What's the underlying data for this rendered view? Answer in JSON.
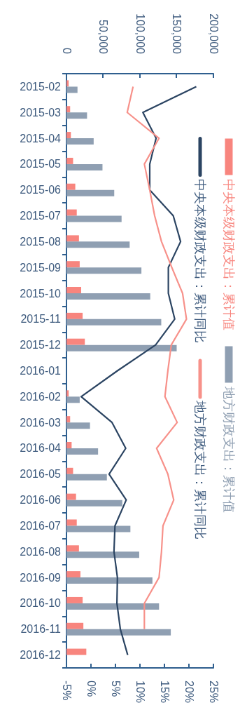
{
  "chart_data": {
    "type": "bar",
    "orientation": "horizontal",
    "categories": [
      "2015-02",
      "2015-03",
      "2015-04",
      "2015-05",
      "2015-06",
      "2015-07",
      "2015-08",
      "2015-09",
      "2015-10",
      "2015-11",
      "2015-12",
      "2016-01",
      "2016-02",
      "2016-03",
      "2016-04",
      "2016-05",
      "2016-06",
      "2016-07",
      "2016-08",
      "2016-09",
      "2016-10",
      "2016-11",
      "2016-12"
    ],
    "series": [
      {
        "name": "中央本级财政支出：累计值",
        "axis": "x2",
        "color": "#f8857e",
        "values": [
          3000,
          5000,
          6000,
          9000,
          12000,
          14000,
          17000,
          18000,
          20000,
          22000,
          25000,
          null,
          3000,
          5000,
          7000,
          9000,
          13000,
          14000,
          17000,
          19000,
          22000,
          23000,
          27000
        ]
      },
      {
        "name": "地方财政支出：累计值",
        "axis": "x2",
        "color": "#8f9fb2",
        "values": [
          15000,
          28000,
          37000,
          49000,
          65000,
          75000,
          86000,
          102000,
          114000,
          129000,
          150000,
          null,
          18000,
          32000,
          43000,
          55000,
          76000,
          87000,
          99000,
          117000,
          126000,
          142000,
          null
        ]
      },
      {
        "name": "中央本级财政支出：累计同比",
        "type": "line",
        "color": "#2b4462",
        "values": [
          21.5,
          10.6,
          13.3,
          12.0,
          12.0,
          16.8,
          18.3,
          15.8,
          15.8,
          17.1,
          13.2,
          5.4,
          -2.0,
          4.3,
          7.1,
          3.7,
          7.2,
          4.9,
          4.7,
          5.4,
          5.3,
          6.0,
          7.5
        ]
      },
      {
        "name": "地方财政支出：累计同比",
        "type": "line",
        "color": "#f7918a",
        "values": [
          8.6,
          7.4,
          13.9,
          10.9,
          12.0,
          13.0,
          14.4,
          16.5,
          18.7,
          19.5,
          16.4,
          15.7,
          15.1,
          17.6,
          13.4,
          15.7,
          16.9,
          14.7,
          14.4,
          13.9,
          10.9,
          10.9,
          null
        ]
      }
    ],
    "xlim": [
      -5,
      25
    ],
    "xticks": [
      {
        "value": -5,
        "label": "-5%"
      },
      {
        "value": 0,
        "label": "0%"
      },
      {
        "value": 5,
        "label": "5%"
      },
      {
        "value": 10,
        "label": "10%"
      },
      {
        "value": 15,
        "label": "15%"
      },
      {
        "value": 20,
        "label": "20%"
      },
      {
        "value": 25,
        "label": "25%"
      }
    ],
    "x2lim": [
      0,
      200000
    ],
    "x2ticks": [
      0,
      {
        "value": 50000,
        "label": "50,000"
      },
      {
        "value": 100000,
        "label": "100,000"
      },
      {
        "value": 150000,
        "label": "150,000"
      },
      {
        "value": 200000,
        "label": "200,000"
      }
    ],
    "legend": "right",
    "marker": "none",
    "grid": false
  }
}
